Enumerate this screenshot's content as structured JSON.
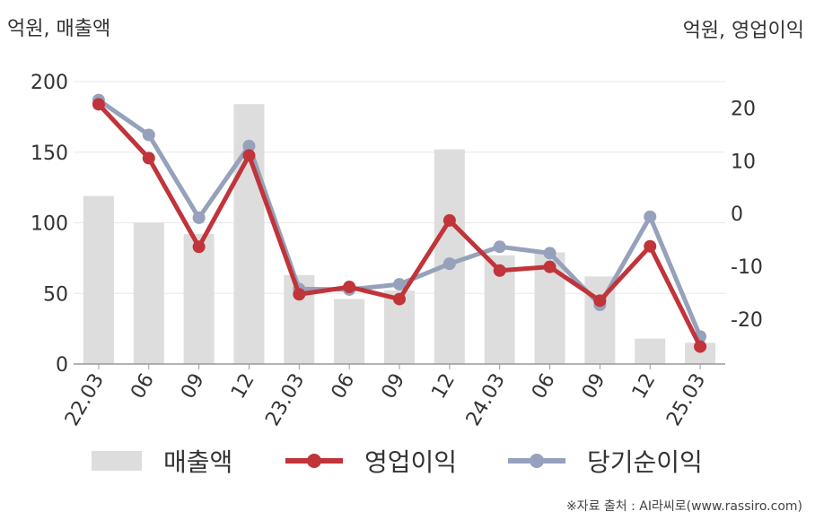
{
  "units": {
    "left": "억원, 매출액",
    "right": "억원, 영업이익"
  },
  "source": "※자료 출처 : AI라씨로(www.rassiro.com)",
  "chart_data": {
    "type": "bar",
    "categories": [
      "22.03",
      "06",
      "09",
      "12",
      "23.03",
      "06",
      "09",
      "12",
      "24.03",
      "06",
      "09",
      "12",
      "25.03"
    ],
    "left_axis": {
      "ylim": [
        0,
        200
      ],
      "ticks": [
        0,
        50,
        100,
        150,
        200
      ]
    },
    "right_axis": {
      "ylim": [
        -28.5,
        25
      ],
      "ticks": [
        -20,
        -10,
        0,
        10,
        20
      ]
    },
    "grid": true,
    "legend_position": "bottom",
    "series": [
      {
        "name": "매출액",
        "type": "bar",
        "axis": "left",
        "color": "#dddddd",
        "values": [
          119,
          100,
          92,
          184,
          63,
          46,
          52,
          152,
          77,
          79,
          62,
          18,
          15
        ]
      },
      {
        "name": "영업이익",
        "type": "line",
        "axis": "right",
        "color": "#c0343a",
        "values": [
          20.7,
          10.5,
          -6.3,
          11.0,
          -15.3,
          -13.9,
          -16.2,
          -1.3,
          -10.8,
          -10.1,
          -16.5,
          -6.2,
          -25.2
        ]
      },
      {
        "name": "당기순이익",
        "type": "line",
        "axis": "right",
        "color": "#96a1bb",
        "values": [
          21.5,
          14.9,
          -0.8,
          12.8,
          -14.3,
          -14.4,
          -13.4,
          -9.5,
          -6.3,
          -7.5,
          -17.3,
          -0.6,
          -23.3
        ]
      }
    ]
  }
}
